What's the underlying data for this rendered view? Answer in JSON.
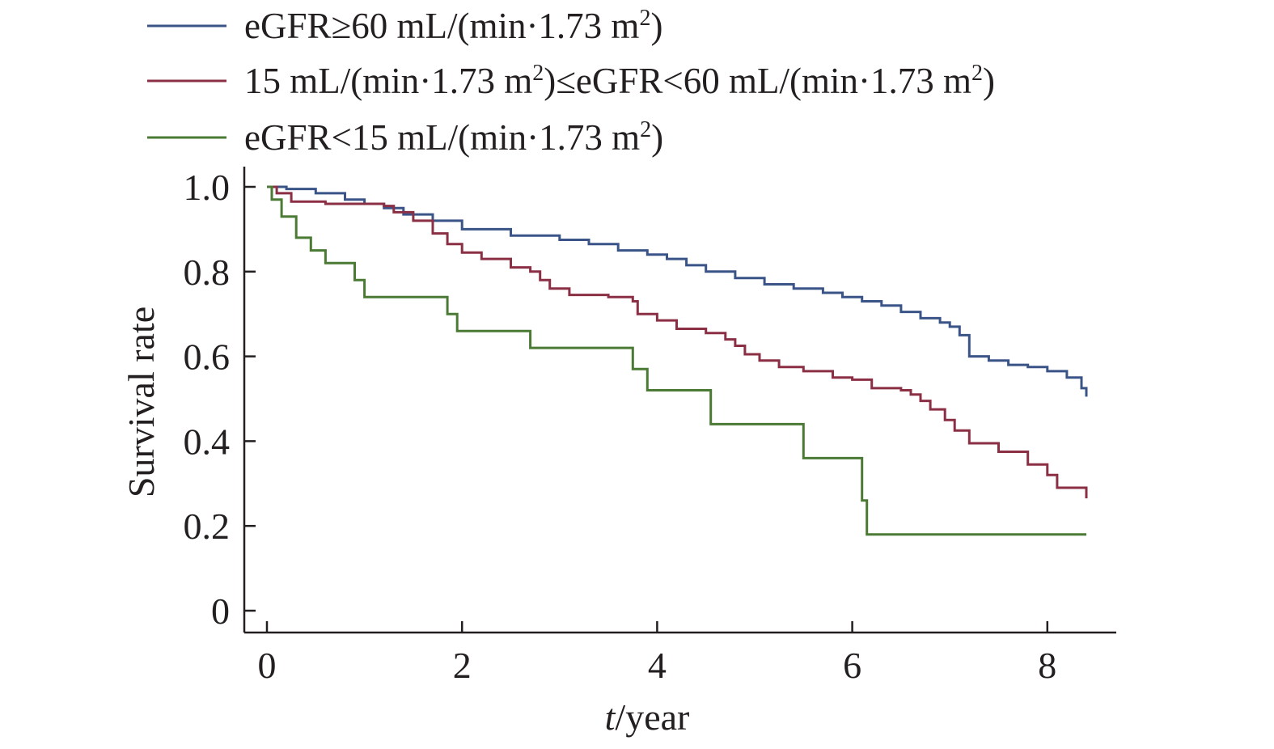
{
  "chart_data": {
    "type": "line",
    "step": true,
    "xlabel": {
      "italic": "t",
      "rest": "/year"
    },
    "ylabel": "Survival rate",
    "xlim": [
      0,
      8.4
    ],
    "ylim": [
      0,
      1.0
    ],
    "x_ticks": [
      0,
      2,
      4,
      6,
      8
    ],
    "x_tick_labels": [
      "0",
      "2",
      "4",
      "6",
      "8"
    ],
    "y_ticks": [
      0,
      0.2,
      0.4,
      0.6,
      0.8,
      1.0
    ],
    "y_tick_labels": [
      "0",
      "0.2",
      "0.4",
      "0.6",
      "0.8",
      "1.0"
    ],
    "grid": false,
    "legend_position": "top",
    "series": [
      {
        "name": "eGFR≥60 mL/(min·1.73 m²)",
        "legend": {
          "pre": "eGFR≥60 mL/(min·1.73 m",
          "sup": "2",
          "post": ")"
        },
        "color": "#3a5488",
        "x": [
          0,
          0.2,
          0.5,
          0.8,
          1.0,
          1.2,
          1.4,
          1.7,
          2.0,
          2.5,
          3.0,
          3.3,
          3.6,
          3.9,
          4.1,
          4.3,
          4.5,
          4.8,
          5.1,
          5.4,
          5.7,
          5.9,
          6.1,
          6.3,
          6.5,
          6.7,
          6.9,
          7.0,
          7.1,
          7.2,
          7.4,
          7.6,
          7.8,
          8.0,
          8.2,
          8.35,
          8.4
        ],
        "y": [
          1.0,
          0.995,
          0.985,
          0.97,
          0.96,
          0.95,
          0.935,
          0.92,
          0.9,
          0.885,
          0.875,
          0.865,
          0.85,
          0.84,
          0.83,
          0.815,
          0.8,
          0.785,
          0.77,
          0.76,
          0.75,
          0.74,
          0.73,
          0.72,
          0.705,
          0.69,
          0.68,
          0.67,
          0.65,
          0.6,
          0.59,
          0.58,
          0.575,
          0.565,
          0.55,
          0.525,
          0.505
        ]
      },
      {
        "name": "15 mL/(min·1.73 m²)≤eGFR<60 mL/(min·1.73 m²)",
        "legend": {
          "pre": "15 mL/(min·1.73 m",
          "sup": "2",
          "mid": ")≤eGFR<60 mL/(min·1.73 m",
          "sup2": "2",
          "post": ")"
        },
        "color": "#8b2f45",
        "x": [
          0,
          0.1,
          0.25,
          0.6,
          1.2,
          1.3,
          1.5,
          1.7,
          1.85,
          2.0,
          2.2,
          2.5,
          2.7,
          2.8,
          2.9,
          3.1,
          3.5,
          3.75,
          3.8,
          4.0,
          4.2,
          4.5,
          4.7,
          4.8,
          4.9,
          5.05,
          5.25,
          5.5,
          5.8,
          6.0,
          6.2,
          6.5,
          6.6,
          6.7,
          6.8,
          6.95,
          7.05,
          7.2,
          7.5,
          7.8,
          8.0,
          8.1,
          8.4
        ],
        "y": [
          1.0,
          0.985,
          0.965,
          0.96,
          0.955,
          0.94,
          0.92,
          0.89,
          0.865,
          0.845,
          0.83,
          0.81,
          0.8,
          0.78,
          0.76,
          0.745,
          0.74,
          0.73,
          0.7,
          0.685,
          0.665,
          0.655,
          0.64,
          0.625,
          0.605,
          0.59,
          0.575,
          0.565,
          0.55,
          0.545,
          0.525,
          0.52,
          0.51,
          0.495,
          0.475,
          0.45,
          0.425,
          0.395,
          0.375,
          0.345,
          0.32,
          0.29,
          0.265
        ]
      },
      {
        "name": "eGFR<15 mL/(min·1.73 m²)",
        "legend": {
          "pre": "eGFR<15 mL/(min·1.73 m",
          "sup": "2",
          "post": ")"
        },
        "color": "#4a7a34",
        "x": [
          0,
          0.05,
          0.15,
          0.3,
          0.45,
          0.6,
          0.9,
          1.0,
          1.85,
          1.95,
          2.7,
          3.75,
          3.9,
          4.55,
          5.5,
          6.1,
          6.15,
          8.4
        ],
        "y": [
          1.0,
          0.97,
          0.93,
          0.88,
          0.85,
          0.82,
          0.78,
          0.74,
          0.7,
          0.66,
          0.62,
          0.57,
          0.52,
          0.44,
          0.36,
          0.26,
          0.18,
          0.18
        ]
      }
    ]
  }
}
